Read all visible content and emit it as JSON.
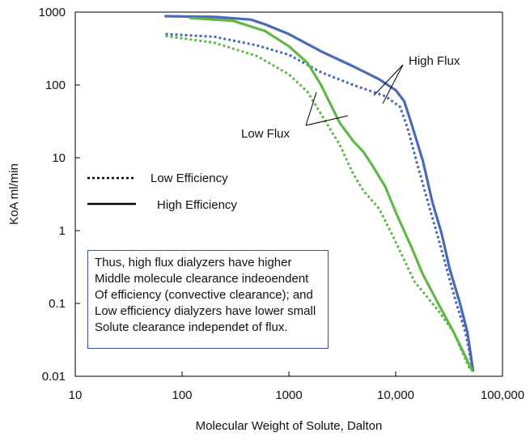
{
  "chart_data": {
    "type": "line",
    "xlabel": "Molecular Weight of Solute, Dalton",
    "ylabel": "KoA ml/min",
    "xscale": "log",
    "yscale": "log",
    "xlim": [
      10,
      100000
    ],
    "ylim": [
      0.01,
      1000
    ],
    "xticks": [
      "10",
      "100",
      "1000",
      "10,000",
      "100,000"
    ],
    "yticks": [
      "1000",
      "100",
      "10",
      "1",
      "0.1",
      "0.01"
    ],
    "legend": [
      {
        "label": "Low Efficiency",
        "style": "dotted"
      },
      {
        "label": "High Efficiency",
        "style": "solid"
      }
    ],
    "annotations": {
      "high_flux": "High Flux",
      "low_flux": "Low Flux"
    },
    "series": [
      {
        "flux": "High Flux",
        "efficiency": "High Efficiency",
        "color": "#4a6ab8",
        "style": "solid",
        "points": [
          [
            70,
            880
          ],
          [
            200,
            860
          ],
          [
            440,
            790
          ],
          [
            600,
            680
          ],
          [
            1000,
            500
          ],
          [
            2000,
            290
          ],
          [
            4000,
            180
          ],
          [
            7000,
            120
          ],
          [
            10000,
            85
          ],
          [
            12000,
            60
          ],
          [
            14000,
            30
          ],
          [
            18000,
            9
          ],
          [
            22000,
            2.5
          ],
          [
            27000,
            0.9
          ],
          [
            32000,
            0.3
          ],
          [
            40000,
            0.1
          ],
          [
            47000,
            0.04
          ],
          [
            53000,
            0.012
          ]
        ]
      },
      {
        "flux": "High Flux",
        "efficiency": "Low Efficiency",
        "color": "#4a6ab8",
        "style": "dotted",
        "points": [
          [
            70,
            500
          ],
          [
            200,
            460
          ],
          [
            500,
            350
          ],
          [
            1000,
            260
          ],
          [
            2000,
            150
          ],
          [
            4000,
            100
          ],
          [
            8000,
            70
          ],
          [
            11000,
            50
          ],
          [
            13000,
            25
          ],
          [
            16000,
            8
          ],
          [
            20000,
            2.5
          ],
          [
            25000,
            0.8
          ],
          [
            30000,
            0.3
          ],
          [
            37000,
            0.1
          ],
          [
            45000,
            0.04
          ],
          [
            53000,
            0.012
          ]
        ]
      },
      {
        "flux": "Low Flux",
        "efficiency": "High Efficiency",
        "color": "#5fb848",
        "style": "solid",
        "points": [
          [
            120,
            830
          ],
          [
            300,
            760
          ],
          [
            600,
            550
          ],
          [
            1000,
            340
          ],
          [
            1500,
            200
          ],
          [
            2000,
            100
          ],
          [
            3000,
            30
          ],
          [
            4000,
            17
          ],
          [
            5000,
            12
          ],
          [
            6000,
            8
          ],
          [
            8000,
            4
          ],
          [
            10000,
            1.8
          ],
          [
            14000,
            0.6
          ],
          [
            18000,
            0.25
          ],
          [
            25000,
            0.1
          ],
          [
            35000,
            0.04
          ],
          [
            52000,
            0.012
          ]
        ]
      },
      {
        "flux": "Low Flux",
        "efficiency": "Low Efficiency",
        "color": "#5fb848",
        "style": "dotted",
        "points": [
          [
            70,
            470
          ],
          [
            200,
            380
          ],
          [
            500,
            250
          ],
          [
            1000,
            140
          ],
          [
            1500,
            80
          ],
          [
            2000,
            40
          ],
          [
            3000,
            15
          ],
          [
            4000,
            6
          ],
          [
            5000,
            3.5
          ],
          [
            7000,
            2.0
          ],
          [
            10000,
            0.7
          ],
          [
            15000,
            0.2
          ],
          [
            25000,
            0.08
          ],
          [
            35000,
            0.04
          ],
          [
            50000,
            0.012
          ]
        ]
      }
    ],
    "note_lines": [
      "Thus, high flux dialyzers have higher",
      "Middle molecule clearance indeoendent",
      "Of efficiency (convective clearance); and",
      "Low efficiency dialyzers have lower small",
      "Solute clearance independet of flux."
    ]
  }
}
